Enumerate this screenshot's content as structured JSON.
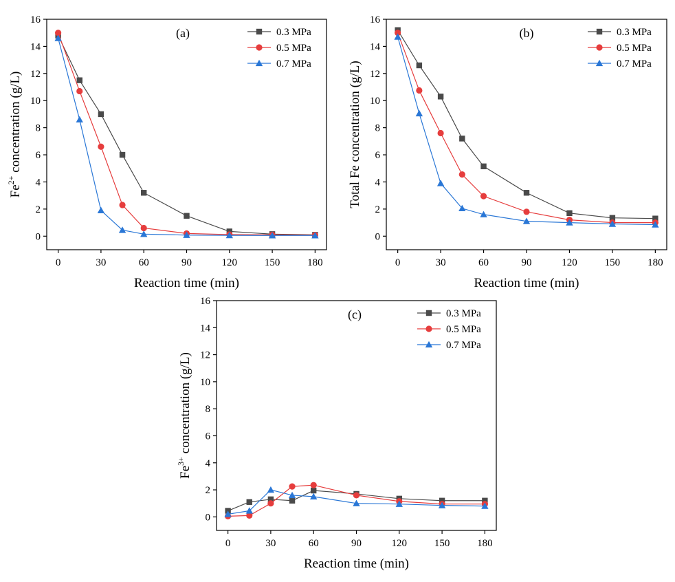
{
  "colors": {
    "0.3 MPa": "#4a4a4a",
    "0.5 MPa": "#e63d3d",
    "0.7 MPa": "#2a77d6"
  },
  "chart_data": [
    {
      "type": "line",
      "panel": "(a)",
      "xlabel": "Reaction time (min)",
      "ylabel_parts": [
        "Fe",
        "2+",
        " concentration (g/L)"
      ],
      "x": [
        0,
        15,
        30,
        45,
        60,
        90,
        120,
        150,
        180
      ],
      "xticks": [
        0,
        30,
        60,
        90,
        120,
        150,
        180
      ],
      "xlim": [
        -8,
        188
      ],
      "ylim": [
        -1,
        16
      ],
      "yticks": [
        0,
        2,
        4,
        6,
        8,
        10,
        12,
        14,
        16
      ],
      "series": [
        {
          "name": "0.3 MPa",
          "marker": "square",
          "values": [
            14.8,
            11.5,
            9.0,
            6.0,
            3.2,
            1.5,
            0.35,
            0.15,
            0.1
          ]
        },
        {
          "name": "0.5 MPa",
          "marker": "circle",
          "values": [
            15.0,
            10.7,
            6.6,
            2.3,
            0.6,
            0.2,
            0.12,
            0.1,
            0.08
          ]
        },
        {
          "name": "0.7 MPa",
          "marker": "triangle",
          "values": [
            14.6,
            8.6,
            1.9,
            0.45,
            0.15,
            0.08,
            0.06,
            0.05,
            0.05
          ]
        }
      ]
    },
    {
      "type": "line",
      "panel": "(b)",
      "xlabel": "Reaction time (min)",
      "ylabel_parts": [
        "Total Fe concentration (g/L)"
      ],
      "x": [
        0,
        15,
        30,
        45,
        60,
        90,
        120,
        150,
        180
      ],
      "xticks": [
        0,
        30,
        60,
        90,
        120,
        150,
        180
      ],
      "xlim": [
        -8,
        188
      ],
      "ylim": [
        -1,
        16
      ],
      "yticks": [
        0,
        2,
        4,
        6,
        8,
        10,
        12,
        14,
        16
      ],
      "series": [
        {
          "name": "0.3 MPa",
          "marker": "square",
          "values": [
            15.2,
            12.6,
            10.3,
            7.2,
            5.15,
            3.2,
            1.7,
            1.35,
            1.3
          ]
        },
        {
          "name": "0.5 MPa",
          "marker": "circle",
          "values": [
            15.0,
            10.75,
            7.6,
            4.55,
            2.95,
            1.8,
            1.2,
            1.0,
            1.0
          ]
        },
        {
          "name": "0.7 MPa",
          "marker": "triangle",
          "values": [
            14.7,
            9.05,
            3.9,
            2.05,
            1.6,
            1.1,
            1.0,
            0.9,
            0.85
          ]
        }
      ]
    },
    {
      "type": "line",
      "panel": "(c)",
      "xlabel": "Reaction time (min)",
      "ylabel_parts": [
        "Fe",
        "3+",
        " concentration (g/L)"
      ],
      "x": [
        0,
        15,
        30,
        45,
        60,
        90,
        120,
        150,
        180
      ],
      "xticks": [
        0,
        30,
        60,
        90,
        120,
        150,
        180
      ],
      "xlim": [
        -8,
        188
      ],
      "ylim": [
        -1,
        16
      ],
      "yticks": [
        0,
        2,
        4,
        6,
        8,
        10,
        12,
        14,
        16
      ],
      "series": [
        {
          "name": "0.3 MPa",
          "marker": "square",
          "values": [
            0.45,
            1.1,
            1.3,
            1.2,
            1.95,
            1.7,
            1.35,
            1.2,
            1.2
          ]
        },
        {
          "name": "0.5 MPa",
          "marker": "circle",
          "values": [
            0.05,
            0.1,
            1.0,
            2.25,
            2.35,
            1.6,
            1.15,
            0.95,
            0.95
          ]
        },
        {
          "name": "0.7 MPa",
          "marker": "triangle",
          "values": [
            0.2,
            0.45,
            2.0,
            1.6,
            1.5,
            1.0,
            0.95,
            0.85,
            0.8
          ]
        }
      ]
    }
  ]
}
